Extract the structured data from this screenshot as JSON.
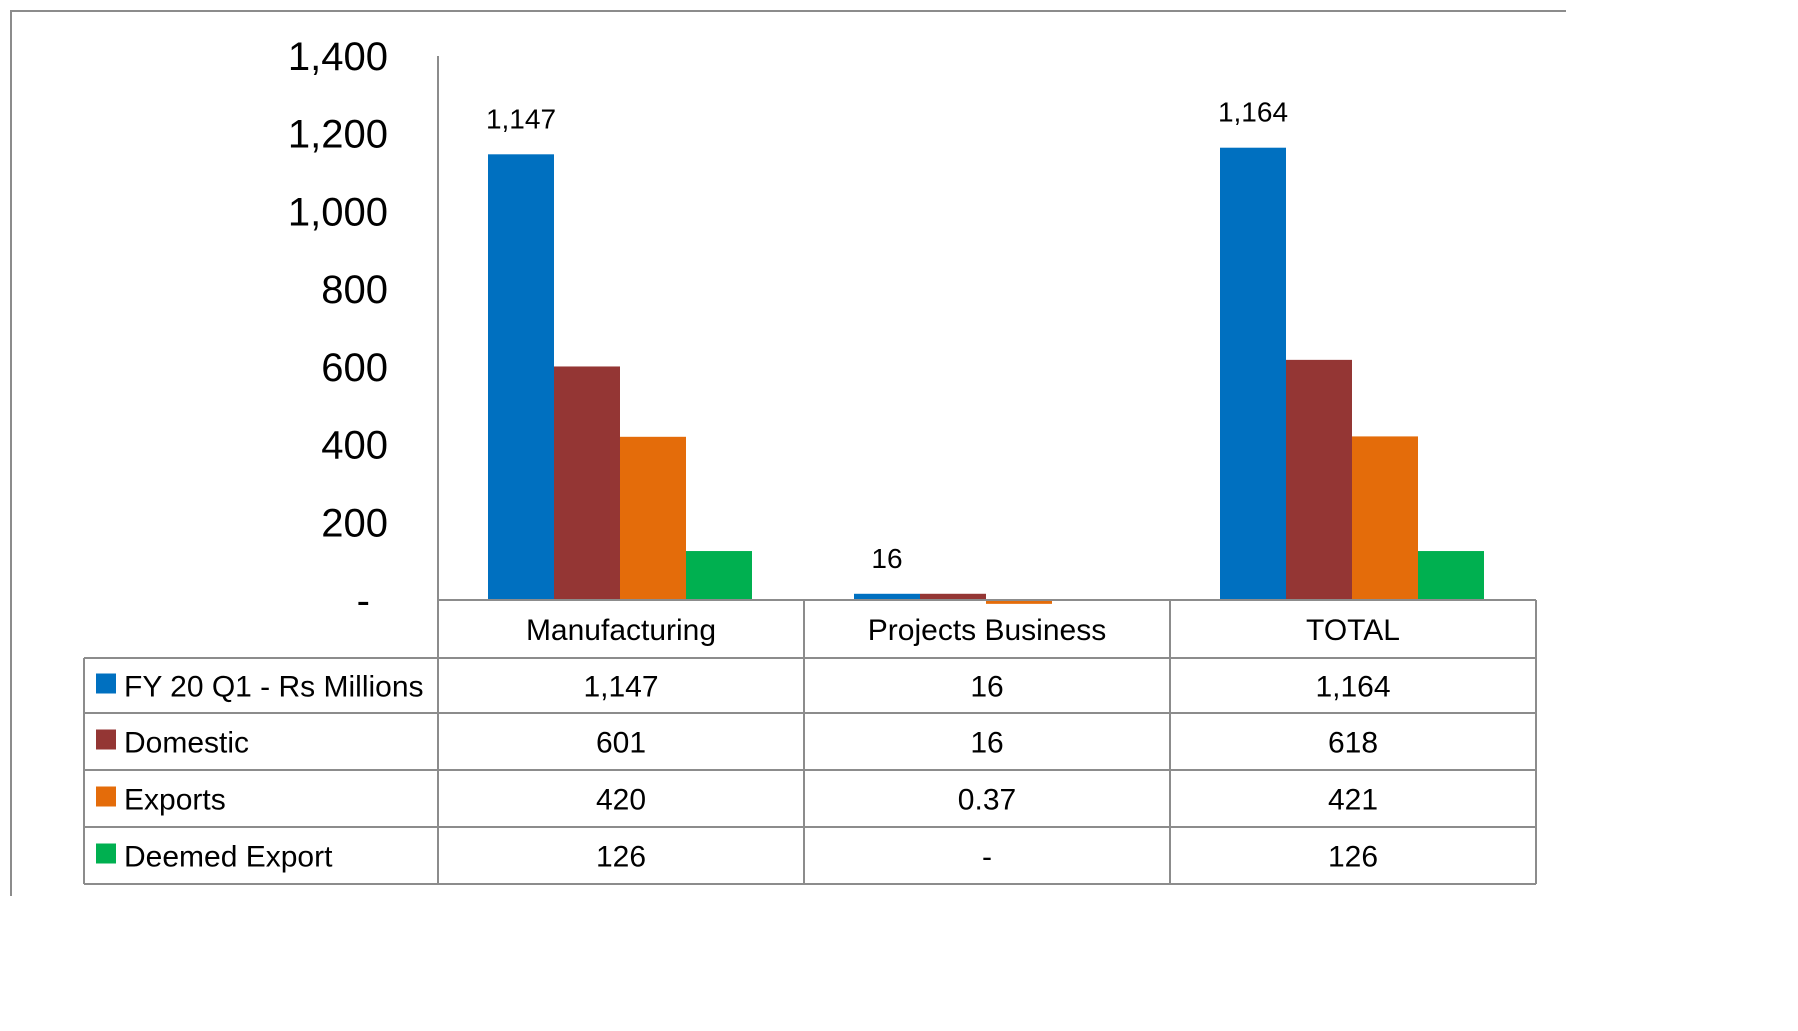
{
  "chart_data": {
    "type": "bar",
    "title": "",
    "xlabel": "",
    "ylabel": "",
    "ylim": [
      0,
      1400
    ],
    "yticks": [
      0,
      200,
      400,
      600,
      800,
      1000,
      1200,
      1400
    ],
    "ytick_labels": [
      "-",
      "200",
      "400",
      "600",
      "800",
      "1,000",
      "1,200",
      "1,400"
    ],
    "categories": [
      "Manufacturing",
      "Projects Business",
      "TOTAL"
    ],
    "series": [
      {
        "name": "FY 20 Q1 - Rs Millions",
        "color": "#0070C0",
        "values": [
          1147,
          16,
          1164
        ],
        "table_labels": [
          "1,147",
          "16",
          "1,164"
        ]
      },
      {
        "name": "Domestic",
        "color": "#943634",
        "values": [
          601,
          16,
          618
        ],
        "table_labels": [
          "601",
          "16",
          "618"
        ]
      },
      {
        "name": "Exports",
        "color": "#E46C0A",
        "values": [
          420,
          0.37,
          421
        ],
        "table_labels": [
          "420",
          "0.37",
          "421"
        ]
      },
      {
        "name": "Deemed Export",
        "color": "#00B050",
        "values": [
          126,
          0,
          126
        ],
        "table_labels": [
          "126",
          "-",
          "126"
        ]
      }
    ],
    "data_labels": [
      {
        "series": 0,
        "category": 0,
        "text": "1,147"
      },
      {
        "series": 0,
        "category": 1,
        "text": "16"
      },
      {
        "series": 0,
        "category": 2,
        "text": "1,164"
      }
    ],
    "grid": false,
    "legend": "data-table"
  }
}
